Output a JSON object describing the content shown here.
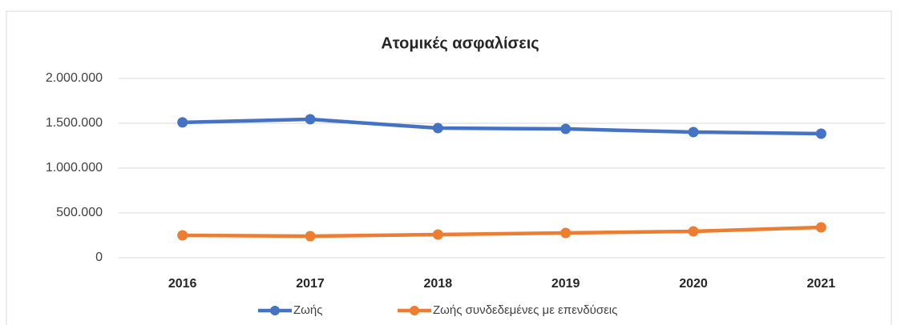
{
  "chart_data": {
    "type": "line",
    "title": "Ατομικές ασφαλίσεις",
    "categories": [
      "2016",
      "2017",
      "2018",
      "2019",
      "2020",
      "2021"
    ],
    "series": [
      {
        "name": "Ζωής",
        "color": "#4472c4",
        "values": [
          1510000,
          1545000,
          1446000,
          1437000,
          1402000,
          1384000
        ]
      },
      {
        "name": "Ζωής συνδεδεμένες με επενδύσεις",
        "color": "#ed7d31",
        "values": [
          250000,
          241000,
          259000,
          277000,
          295000,
          339000
        ]
      }
    ],
    "ylim": [
      0,
      2000000
    ],
    "yticks": [
      0,
      {
        "value": 500000,
        "label": "500.000"
      },
      {
        "value": 1000000,
        "label": "1.000.000"
      },
      {
        "value": 1500000,
        "label": "1.500.000"
      },
      {
        "value": 2000000,
        "label": "2.000.000"
      }
    ],
    "grid": true,
    "legend": "bottom"
  }
}
